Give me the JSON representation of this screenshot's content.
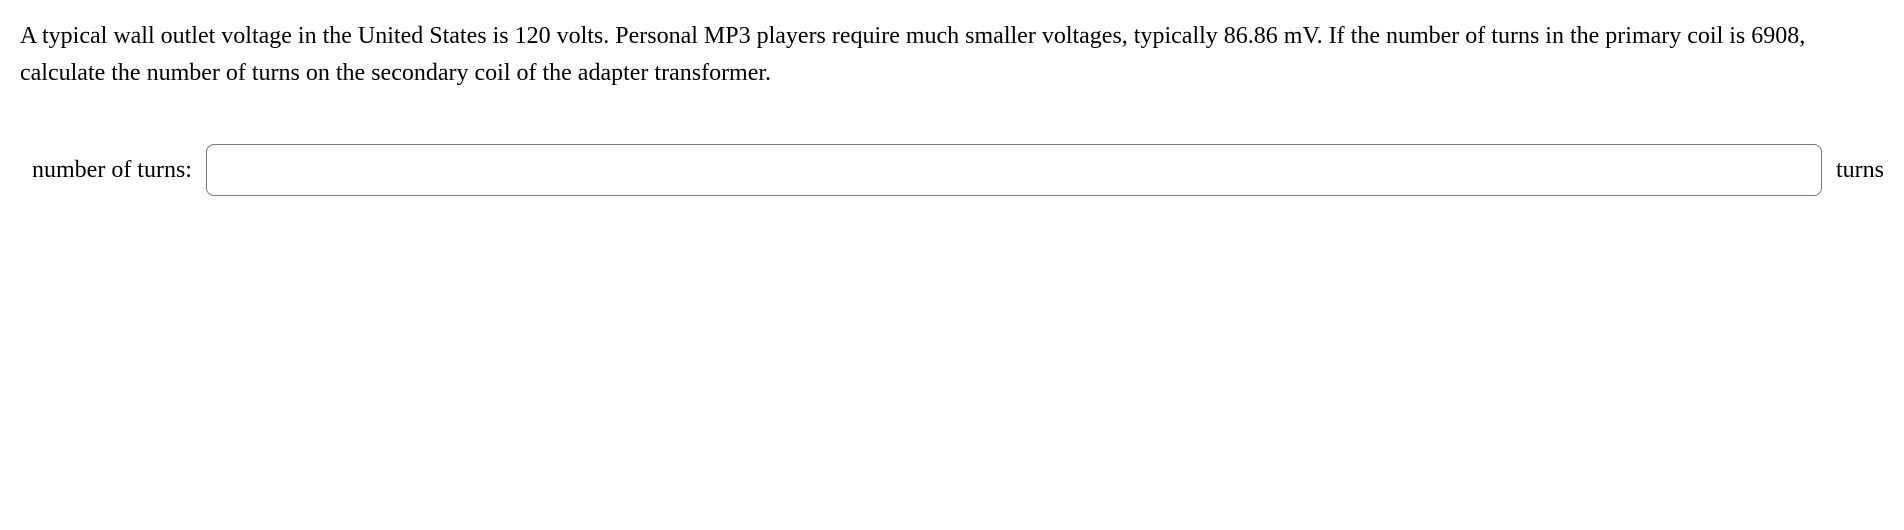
{
  "problem": {
    "text": "A typical wall outlet voltage in the United States is 120 volts. Personal MP3 players require much smaller voltages, typically 86.86 mV. If the number of turns in the primary coil is 6908, calculate the number of turns on the secondary coil of the adapter transformer."
  },
  "answer": {
    "label": "number of turns:",
    "value": "",
    "placeholder": "",
    "unit": "turns"
  }
}
